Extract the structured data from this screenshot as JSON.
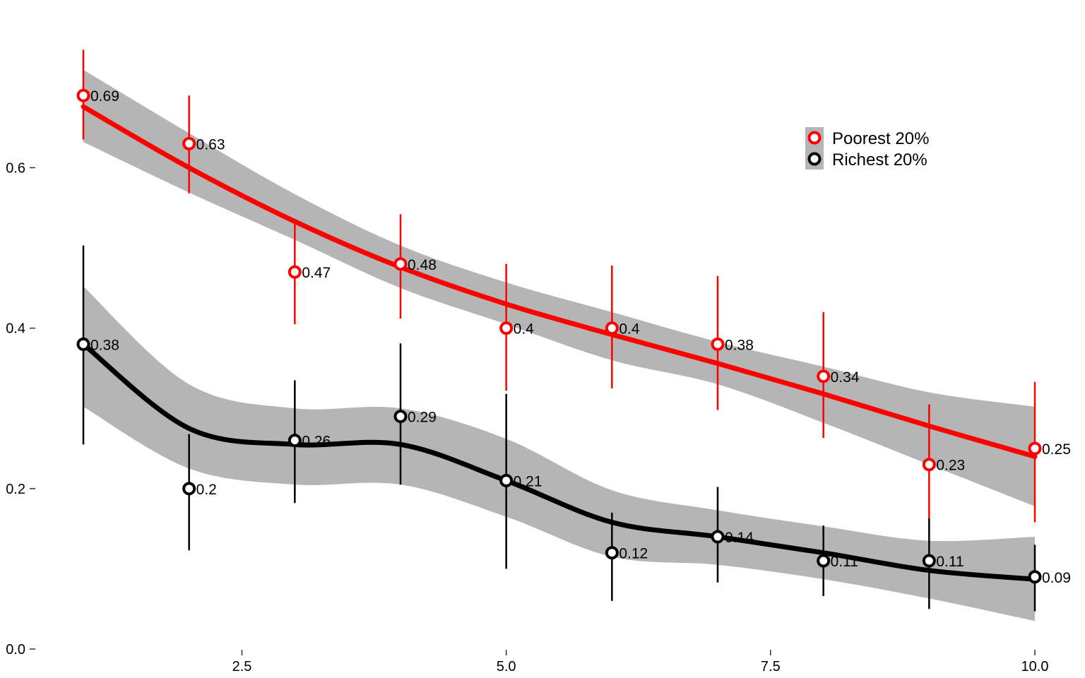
{
  "chart_data": {
    "type": "line",
    "title": "",
    "xlabel": "",
    "ylabel": "",
    "xlim": [
      0.6,
      10.15
    ],
    "ylim": [
      0,
      0.75
    ],
    "x_ticks": [
      2.5,
      5.0,
      7.5,
      10.0
    ],
    "x_tick_labels": [
      "2.5",
      "5.0",
      "7.5",
      "10.0"
    ],
    "y_ticks": [
      0.0,
      0.2,
      0.4,
      0.6
    ],
    "y_tick_labels": [
      "0.0",
      "0.2",
      "0.4",
      "0.6"
    ],
    "grid": false,
    "legend_position": "top-right",
    "x": [
      1,
      2,
      3,
      4,
      5,
      6,
      7,
      8,
      9,
      10
    ],
    "series": [
      {
        "name": "Poorest 20%",
        "color": "#ff0000",
        "values": [
          0.69,
          0.63,
          0.47,
          0.48,
          0.4,
          0.4,
          0.38,
          0.34,
          0.23,
          0.25
        ],
        "labels": [
          "0.69",
          "0.63",
          "0.47",
          "0.48",
          "0.4",
          "0.4",
          "0.38",
          "0.34",
          "0.23",
          "0.25"
        ],
        "error_low": [
          0.635,
          0.568,
          0.405,
          0.412,
          0.322,
          0.325,
          0.298,
          0.263,
          0.163,
          0.158
        ],
        "error_high": [
          0.747,
          0.69,
          0.535,
          0.542,
          0.48,
          0.478,
          0.465,
          0.42,
          0.305,
          0.333
        ],
        "smooth": [
          0.676,
          0.6,
          0.533,
          0.476,
          0.43,
          0.392,
          0.356,
          0.318,
          0.278,
          0.24
        ],
        "band_low": [
          0.632,
          0.569,
          0.51,
          0.45,
          0.405,
          0.36,
          0.33,
          0.282,
          0.23,
          0.178
        ],
        "band_high": [
          0.722,
          0.643,
          0.567,
          0.503,
          0.457,
          0.42,
          0.383,
          0.352,
          0.32,
          0.302
        ]
      },
      {
        "name": "Richest 20%",
        "color": "#000000",
        "values": [
          0.38,
          0.2,
          0.26,
          0.29,
          0.21,
          0.12,
          0.14,
          0.11,
          0.11,
          0.09
        ],
        "labels": [
          "0.38",
          "0.2",
          "0.26",
          "0.29",
          "0.21",
          "0.12",
          "0.14",
          "0.11",
          "0.11",
          "0.09"
        ],
        "error_low": [
          0.255,
          0.123,
          0.182,
          0.205,
          0.1,
          0.06,
          0.083,
          0.066,
          0.05,
          0.047
        ],
        "error_high": [
          0.503,
          0.268,
          0.335,
          0.381,
          0.318,
          0.17,
          0.202,
          0.154,
          0.163,
          0.13
        ],
        "smooth": [
          0.38,
          0.275,
          0.255,
          0.255,
          0.21,
          0.158,
          0.14,
          0.12,
          0.098,
          0.087
        ],
        "band_low": [
          0.302,
          0.225,
          0.205,
          0.205,
          0.165,
          0.115,
          0.105,
          0.087,
          0.063,
          0.035
        ],
        "band_high": [
          0.452,
          0.33,
          0.3,
          0.3,
          0.262,
          0.198,
          0.173,
          0.153,
          0.135,
          0.14
        ]
      }
    ],
    "band_color": "#b5b5b5"
  }
}
